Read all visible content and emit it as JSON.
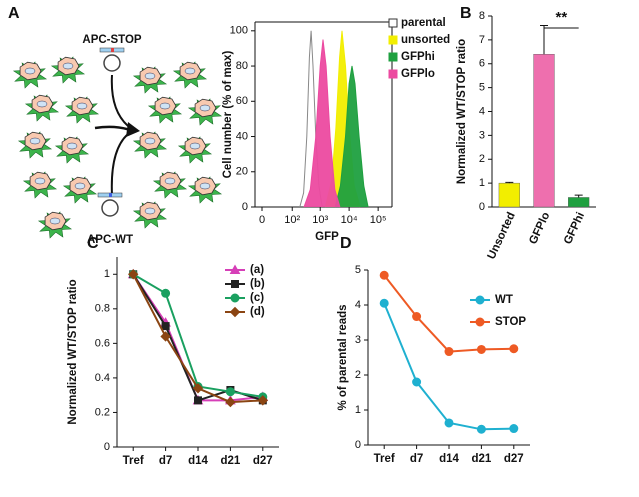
{
  "diagram": {
    "panel": "A",
    "labels": [
      "APC-STOP",
      "APC-WT"
    ]
  },
  "chart_data": [
    {
      "type": "density",
      "ylabel": "Cell number (% of max)",
      "xlabel": "GFP",
      "xscale": "symlog",
      "xlim": [
        0,
        300000
      ],
      "ylim": [
        0,
        105
      ],
      "xticks": [
        0,
        {
          "value": 100,
          "label": "10²"
        },
        {
          "value": 1000,
          "label": "10³"
        },
        {
          "value": 10000,
          "label": "10⁴"
        },
        {
          "value": 100000,
          "label": "10⁵"
        }
      ],
      "yticks": [
        0,
        20,
        40,
        60,
        80,
        100
      ],
      "series": [
        {
          "name": "parental",
          "color": "#888888",
          "filled": false,
          "x": [
            190,
            260,
            340,
            420,
            480,
            560,
            700,
            900,
            1170
          ],
          "values": [
            0,
            8,
            40,
            85,
            100,
            80,
            40,
            12,
            0
          ]
        },
        {
          "name": "unsorted",
          "color": "#f2ee00",
          "filled": true,
          "x": [
            1500,
            2500,
            3500,
            4700,
            5700,
            7500,
            10000,
            15000,
            24000
          ],
          "values": [
            0,
            15,
            45,
            85,
            100,
            80,
            45,
            12,
            0
          ]
        },
        {
          "name": "GFPhi",
          "color": "#1fa040",
          "filled": true,
          "x": [
            3300,
            5000,
            7500,
            10000,
            12600,
            16000,
            22000,
            32000,
            45000
          ],
          "values": [
            0,
            12,
            40,
            70,
            80,
            70,
            40,
            12,
            0
          ]
        },
        {
          "name": "GFPlo",
          "color": "#ec4aa0",
          "filled": true,
          "x": [
            270,
            450,
            700,
            1000,
            1250,
            1600,
            2200,
            3200,
            4800
          ],
          "values": [
            0,
            10,
            40,
            80,
            95,
            80,
            40,
            10,
            0
          ]
        }
      ]
    },
    {
      "type": "bar",
      "panel": "B",
      "ylabel": "Normalized WT/STOP ratio",
      "categories": [
        "Unsorted",
        "GFPlo",
        "GFPhi"
      ],
      "values": [
        1.0,
        6.4,
        0.4
      ],
      "errors": [
        0.03,
        1.2,
        0.1
      ],
      "colors": [
        "#f2ee00",
        "#ee6fae",
        "#1fa040"
      ],
      "ylim": [
        0,
        8
      ],
      "yticks": [
        0,
        1,
        2,
        3,
        4,
        5,
        6,
        7,
        8
      ],
      "annotation": "**"
    },
    {
      "type": "line",
      "panel": "C",
      "ylabel": "Normalized WT/STOP ratio",
      "categories": [
        "Tref",
        "d7",
        "d14",
        "d21",
        "d27"
      ],
      "ylim": [
        0,
        1.1
      ],
      "yticks": [
        0,
        0.2,
        0.4,
        0.6,
        0.8,
        1
      ],
      "series": [
        {
          "name": "(a)",
          "color": "#d63fb8",
          "marker": "triangle",
          "values": [
            1,
            0.72,
            0.27,
            0.27,
            0.29
          ]
        },
        {
          "name": "(b)",
          "color": "#222222",
          "marker": "square",
          "values": [
            1,
            0.7,
            0.27,
            0.33,
            0.27
          ]
        },
        {
          "name": "(c)",
          "color": "#1aa060",
          "marker": "circle",
          "values": [
            1,
            0.89,
            0.35,
            0.32,
            0.29
          ]
        },
        {
          "name": "(d)",
          "color": "#8b4513",
          "marker": "diamond",
          "values": [
            1,
            0.64,
            0.34,
            0.26,
            0.27
          ]
        }
      ]
    },
    {
      "type": "line",
      "panel": "D",
      "ylabel": "% of parental reads",
      "categories": [
        "Tref",
        "d7",
        "d14",
        "d21",
        "d27"
      ],
      "ylim": [
        0,
        5
      ],
      "yticks": [
        0,
        1,
        2,
        3,
        4,
        5
      ],
      "series": [
        {
          "name": "WT",
          "color": "#1fb0d0",
          "marker": "circle",
          "values": [
            4.05,
            1.8,
            0.63,
            0.45,
            0.47
          ]
        },
        {
          "name": "STOP",
          "color": "#ee5a24",
          "marker": "circle",
          "values": [
            4.85,
            3.67,
            2.67,
            2.73,
            2.75
          ]
        }
      ]
    }
  ]
}
